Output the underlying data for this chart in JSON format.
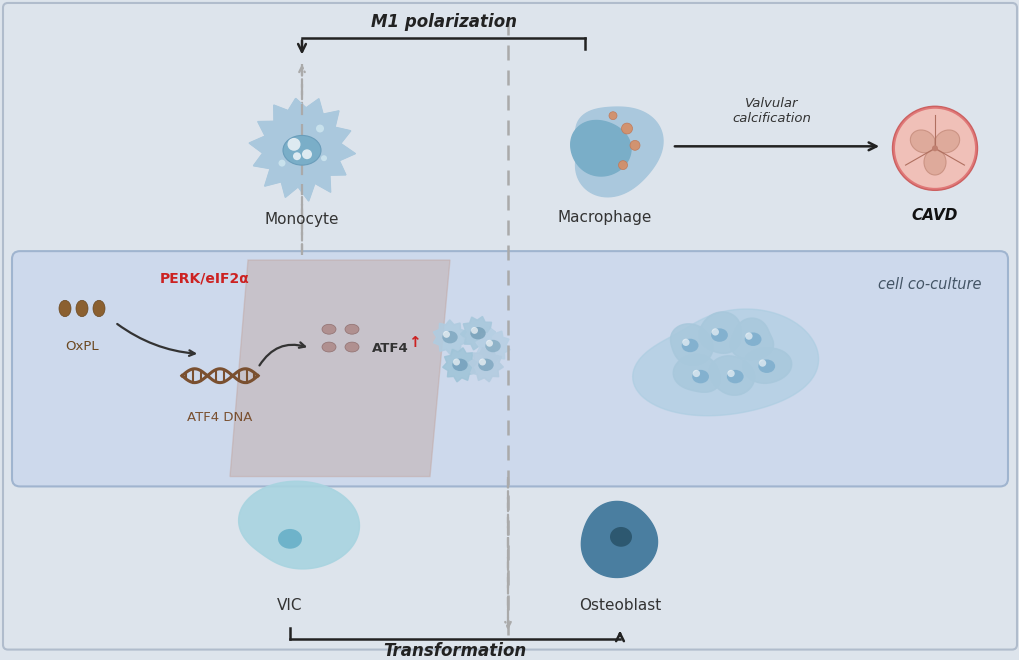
{
  "bg_color": "#dde4ec",
  "fig_width": 10.2,
  "fig_height": 6.6,
  "box_facecolor": "#c8d8ed",
  "box_edgecolor": "#9ab0cc",
  "m1_label": "M1 polarization",
  "transformation_label": "Transformation",
  "valvular_label": "Valvular\ncalcification",
  "monocyte_label": "Monocyte",
  "macrophage_label": "Macrophage",
  "cavd_label": "CAVD",
  "oxpl_label": "OxPL",
  "dna_label": "ATF4 DNA",
  "perk_label": "PERK/eIF2α",
  "vic_label": "VIC",
  "osteoblast_label": "Osteoblast",
  "coculture_label": "cell co-culture",
  "dna_color": "#7a5030",
  "oxpl_color": "#8B6030",
  "atf4_protein_color": "#a89090"
}
